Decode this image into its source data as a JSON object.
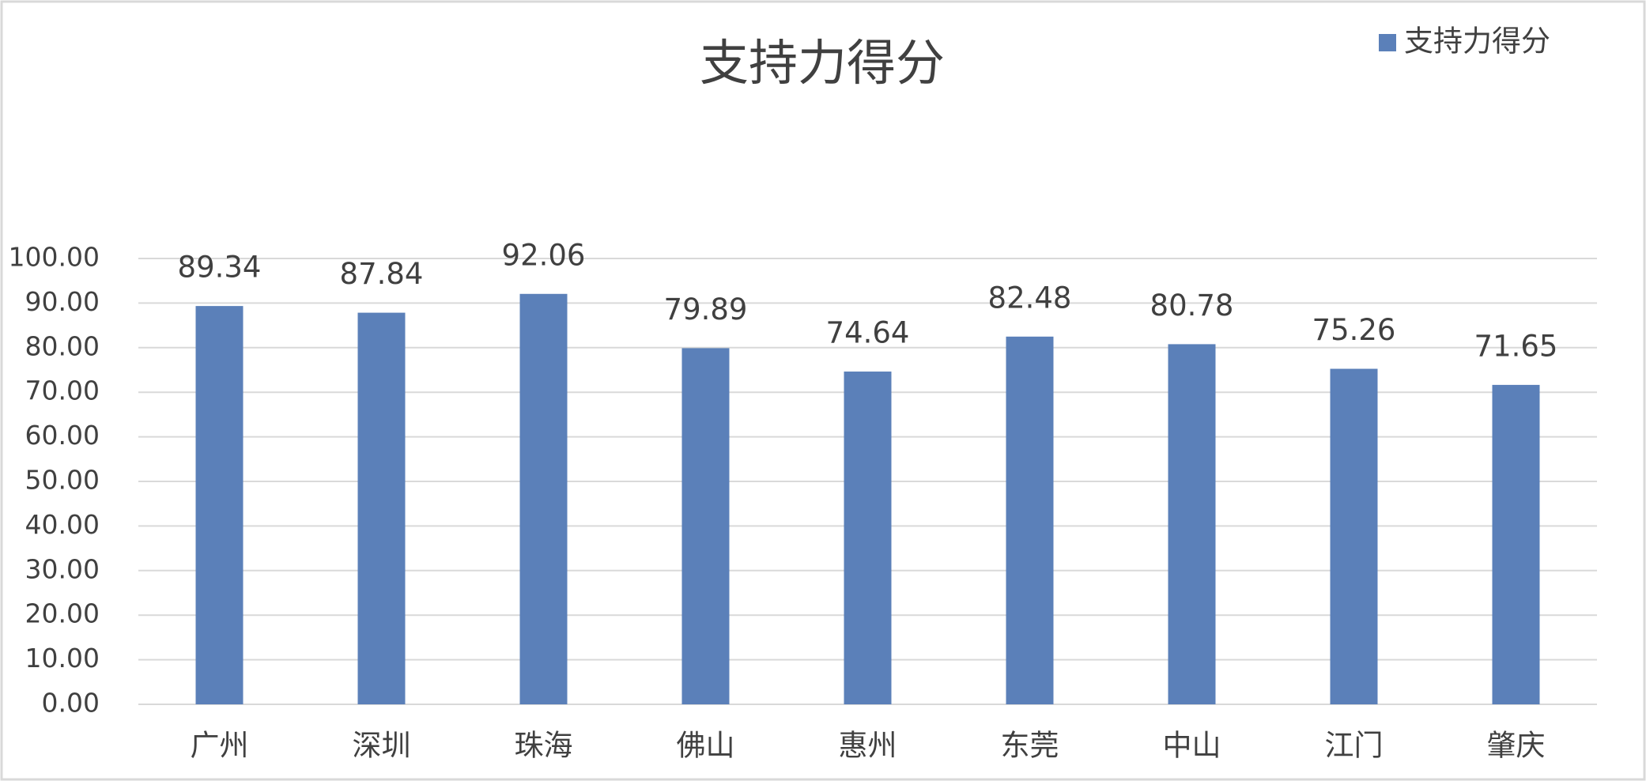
{
  "chart_data": {
    "type": "bar",
    "title": "支持力得分",
    "categories": [
      "广州",
      "深圳",
      "珠海",
      "佛山",
      "惠州",
      "东莞",
      "中山",
      "江门",
      "肇庆"
    ],
    "series": [
      {
        "name": "支持力得分",
        "color": "#5b80b9",
        "values": [
          89.34,
          87.84,
          92.06,
          79.89,
          74.64,
          82.48,
          80.78,
          75.26,
          71.65
        ]
      }
    ],
    "ylim": [
      0,
      100
    ],
    "yticks": [
      {
        "value": 0,
        "label": "0.00"
      },
      {
        "value": 10,
        "label": "10.00"
      },
      {
        "value": 20,
        "label": "20.00"
      },
      {
        "value": 30,
        "label": "30.00"
      },
      {
        "value": 40,
        "label": "40.00"
      },
      {
        "value": 50,
        "label": "50.00"
      },
      {
        "value": 60,
        "label": "60.00"
      },
      {
        "value": 70,
        "label": "70.00"
      },
      {
        "value": 80,
        "label": "80.00"
      },
      {
        "value": 90,
        "label": "90.00"
      },
      {
        "value": 100,
        "label": "100.00"
      }
    ],
    "grid": true,
    "legend": "top-right"
  }
}
